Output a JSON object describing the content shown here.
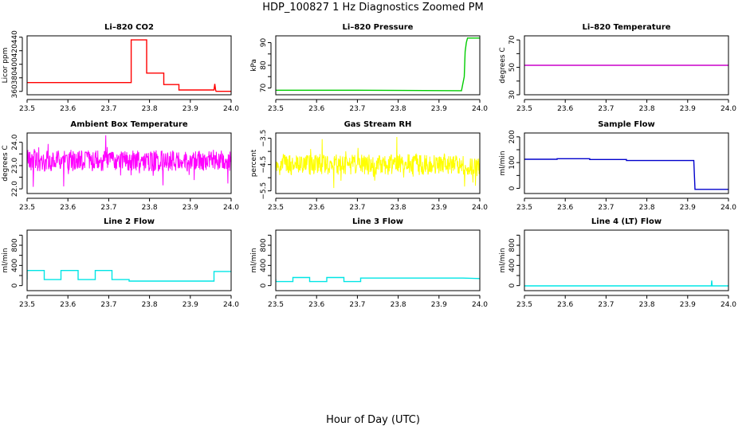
{
  "figure": {
    "title": "HDP_100827  1 Hz Diagnostics Zoomed PM",
    "xlabel": "Hour of Day (UTC)"
  },
  "chart_data": [
    {
      "id": "co2",
      "type": "line",
      "title": "Li–820 CO2",
      "ylabel": "Licor ppm",
      "color": "#ff0000",
      "xlim": [
        23.5,
        24.0
      ],
      "ylim": [
        355,
        442
      ],
      "xticks": [
        23.5,
        23.6,
        23.7,
        23.8,
        23.9,
        24.0
      ],
      "xtick_labels": [
        "23.5",
        "23.6",
        "23.7",
        "23.8",
        "23.9",
        "24.0"
      ],
      "yticks": [
        360,
        380,
        400,
        420,
        440
      ],
      "ytick_labels": [
        "360",
        "380",
        "400",
        "420",
        "440"
      ],
      "series": [
        {
          "x": [
            23.5,
            23.755,
            23.755,
            23.793,
            23.793,
            23.835,
            23.835,
            23.872,
            23.872,
            23.958,
            23.96,
            23.962,
            23.963,
            24.0
          ],
          "y": [
            373,
            373,
            436,
            436,
            387,
            387,
            370,
            370,
            362,
            362,
            371,
            362,
            360,
            360
          ]
        }
      ]
    },
    {
      "id": "pressure",
      "type": "line",
      "title": "Li–820 Pressure",
      "ylabel": "kPa",
      "color": "#00cc00",
      "xlim": [
        23.5,
        24.0
      ],
      "ylim": [
        67,
        93
      ],
      "xticks": [
        23.5,
        23.6,
        23.7,
        23.8,
        23.9,
        24.0
      ],
      "xtick_labels": [
        "23.5",
        "23.6",
        "23.7",
        "23.8",
        "23.9",
        "24.0"
      ],
      "yticks": [
        70,
        75,
        80,
        85,
        90
      ],
      "ytick_labels": [
        "70",
        "",
        "80",
        "",
        "90"
      ],
      "series": [
        {
          "x": [
            23.5,
            23.7,
            23.955,
            23.962,
            23.964,
            23.967,
            23.97,
            24.0
          ],
          "y": [
            69,
            69,
            68.8,
            75,
            86,
            90,
            92,
            92
          ]
        }
      ]
    },
    {
      "id": "temperature",
      "type": "line",
      "title": "Li–820 Temperature",
      "ylabel": "degrees C",
      "color": "#cc00cc",
      "xlim": [
        23.5,
        24.0
      ],
      "ylim": [
        30,
        73
      ],
      "xticks": [
        23.5,
        23.6,
        23.7,
        23.8,
        23.9,
        24.0
      ],
      "xtick_labels": [
        "23.5",
        "23.6",
        "23.7",
        "23.8",
        "23.9",
        "24.0"
      ],
      "yticks": [
        30,
        40,
        50,
        60,
        70
      ],
      "ytick_labels": [
        "30",
        "",
        "50",
        "",
        "70"
      ],
      "series": [
        {
          "x": [
            23.5,
            24.0
          ],
          "y": [
            51.5,
            51.5
          ]
        }
      ]
    },
    {
      "id": "ambient",
      "type": "line",
      "title": "Ambient Box Temperature",
      "ylabel": "degrees C",
      "color": "#ff00ff",
      "noise": {
        "center": 23.2,
        "spread": 0.45,
        "min": 21.9,
        "max": 24.3
      },
      "xlim": [
        23.5,
        24.0
      ],
      "ylim": [
        21.8,
        24.4
      ],
      "xticks": [
        23.5,
        23.6,
        23.7,
        23.8,
        23.9,
        24.0
      ],
      "xtick_labels": [
        "23.5",
        "23.6",
        "23.7",
        "23.8",
        "23.9",
        "24.0"
      ],
      "yticks": [
        22.0,
        22.5,
        23.0,
        23.5,
        24.0
      ],
      "ytick_labels": [
        "22.0",
        "",
        "23.0",
        "",
        "24.0"
      ],
      "series": [
        {
          "x": [
            23.5,
            24.0
          ],
          "y": [
            23.2,
            23.2
          ]
        }
      ]
    },
    {
      "id": "rh",
      "type": "line",
      "title": "Gas Stream RH",
      "ylabel": "percent",
      "color": "#ffff00",
      "noise": {
        "center": -4.5,
        "spread": 0.4,
        "min": -5.45,
        "max": -3.45
      },
      "xlim": [
        23.5,
        24.0
      ],
      "ylim": [
        -5.6,
        -3.3
      ],
      "xticks": [
        23.5,
        23.6,
        23.7,
        23.8,
        23.9,
        24.0
      ],
      "xtick_labels": [
        "23.5",
        "23.6",
        "23.7",
        "23.8",
        "23.9",
        "24.0"
      ],
      "yticks": [
        -5.5,
        -5.0,
        -4.5,
        -4.0,
        -3.5
      ],
      "ytick_labels": [
        "−5.5",
        "",
        "−4.5",
        "",
        "−3.5"
      ],
      "series": [
        {
          "x": [
            23.5,
            24.0
          ],
          "y": [
            -4.5,
            -4.5
          ]
        }
      ]
    },
    {
      "id": "sampleflow",
      "type": "line",
      "title": "Sample Flow",
      "ylabel": "ml/min",
      "color": "#0000cc",
      "xlim": [
        23.5,
        24.0
      ],
      "ylim": [
        -20,
        215
      ],
      "xticks": [
        23.5,
        23.6,
        23.7,
        23.8,
        23.9,
        24.0
      ],
      "xtick_labels": [
        "23.5",
        "23.6",
        "23.7",
        "23.8",
        "23.9",
        "24.0"
      ],
      "yticks": [
        0,
        50,
        100,
        150,
        200
      ],
      "ytick_labels": [
        "0",
        "",
        "100",
        "",
        "200"
      ],
      "series": [
        {
          "x": [
            23.5,
            23.58,
            23.58,
            23.66,
            23.66,
            23.75,
            23.75,
            23.915,
            23.918,
            24.0
          ],
          "y": [
            113,
            113,
            115,
            115,
            112,
            112,
            108,
            108,
            -4,
            -4
          ]
        }
      ]
    },
    {
      "id": "line2",
      "type": "line",
      "title": "Line 2 Flow",
      "ylabel": "ml/min",
      "color": "#00e5e5",
      "xlim": [
        23.5,
        24.0
      ],
      "ylim": [
        -100,
        1100
      ],
      "xticks": [
        23.5,
        23.6,
        23.7,
        23.8,
        23.9,
        24.0
      ],
      "xtick_labels": [
        "23.5",
        "23.6",
        "23.7",
        "23.8",
        "23.9",
        "24.0"
      ],
      "yticks": [
        0,
        200,
        400,
        600,
        800,
        1000
      ],
      "ytick_labels": [
        "0",
        "",
        "400",
        "",
        "800",
        ""
      ],
      "series": [
        {
          "x": [
            23.5,
            23.5,
            23.542,
            23.542,
            23.583,
            23.583,
            23.625,
            23.625,
            23.667,
            23.667,
            23.708,
            23.708,
            23.75,
            23.75,
            23.958,
            23.958,
            24.0
          ],
          "y": [
            120,
            300,
            300,
            120,
            120,
            300,
            300,
            120,
            120,
            300,
            300,
            120,
            120,
            90,
            90,
            280,
            280
          ]
        }
      ]
    },
    {
      "id": "line3",
      "type": "line",
      "title": "Line 3 Flow",
      "ylabel": "ml/min",
      "color": "#00e5e5",
      "xlim": [
        23.5,
        24.0
      ],
      "ylim": [
        -100,
        1100
      ],
      "xticks": [
        23.5,
        23.6,
        23.7,
        23.8,
        23.9,
        24.0
      ],
      "xtick_labels": [
        "23.5",
        "23.6",
        "23.7",
        "23.8",
        "23.9",
        "24.0"
      ],
      "yticks": [
        0,
        200,
        400,
        600,
        800,
        1000
      ],
      "ytick_labels": [
        "0",
        "",
        "400",
        "",
        "800",
        ""
      ],
      "series": [
        {
          "x": [
            23.5,
            23.5,
            23.542,
            23.542,
            23.583,
            23.583,
            23.625,
            23.625,
            23.667,
            23.667,
            23.708,
            23.708,
            23.958,
            24.0
          ],
          "y": [
            130,
            80,
            80,
            160,
            160,
            80,
            80,
            160,
            160,
            80,
            80,
            150,
            150,
            140
          ]
        }
      ]
    },
    {
      "id": "line4",
      "type": "line",
      "title": "Line 4 (LT) Flow",
      "ylabel": "ml/min",
      "color": "#00e5e5",
      "xlim": [
        23.5,
        24.0
      ],
      "ylim": [
        -100,
        1100
      ],
      "xticks": [
        23.5,
        23.6,
        23.7,
        23.8,
        23.9,
        24.0
      ],
      "xtick_labels": [
        "23.5",
        "23.6",
        "23.7",
        "23.8",
        "23.9",
        "24.0"
      ],
      "yticks": [
        0,
        200,
        400,
        600,
        800,
        1000
      ],
      "ytick_labels": [
        "0",
        "",
        "400",
        "",
        "800",
        ""
      ],
      "series": [
        {
          "x": [
            23.5,
            23.958,
            23.959,
            23.96,
            23.961,
            24.0
          ],
          "y": [
            -5,
            -5,
            100,
            -5,
            -5,
            -5
          ]
        }
      ]
    }
  ]
}
